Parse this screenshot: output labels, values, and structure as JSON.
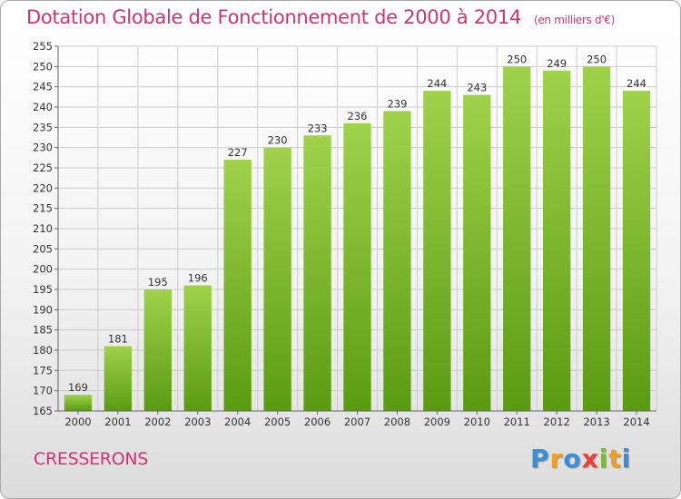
{
  "header": {
    "title": "Dotation Globale de Fonctionnement de 2000 à 2014",
    "unit": "(en milliers d'€)"
  },
  "footer": {
    "commune": "CRESSERONS",
    "brand": "Proxiti"
  },
  "colors": {
    "title": "#d3336f",
    "bar_top": "#9fd24a",
    "bar_bottom": "#5a9b12",
    "grid": "#cccccc"
  },
  "chart_data": {
    "type": "bar",
    "title": "Dotation Globale de Fonctionnement de 2000 à 2014",
    "ylabel": "(en milliers d'€)",
    "xlabel": "",
    "categories": [
      "2000",
      "2001",
      "2002",
      "2003",
      "2004",
      "2005",
      "2006",
      "2007",
      "2008",
      "2009",
      "2010",
      "2011",
      "2012",
      "2013",
      "2014"
    ],
    "values": [
      169,
      181,
      195,
      196,
      227,
      230,
      233,
      236,
      239,
      244,
      243,
      250,
      249,
      250,
      244
    ],
    "ylim": [
      165,
      255
    ],
    "yticks": [
      165,
      170,
      175,
      180,
      185,
      190,
      195,
      200,
      205,
      210,
      215,
      220,
      225,
      230,
      235,
      240,
      245,
      250,
      255
    ],
    "grid": true
  }
}
